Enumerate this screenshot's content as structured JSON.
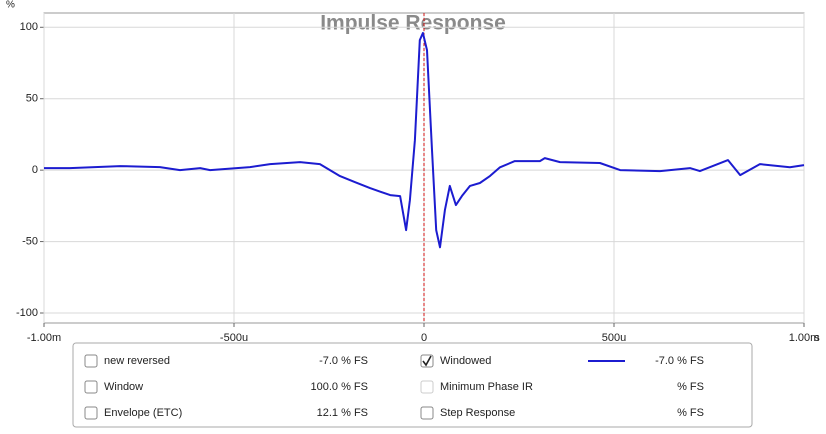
{
  "chart_data": {
    "type": "line",
    "title": "Impulse Response",
    "y_unit": "%",
    "x_unit": "s",
    "xlim": [
      -1,
      1
    ],
    "ylim": [
      -107,
      110
    ],
    "xticks": [
      {
        "value": -1,
        "label": "-1.00m"
      },
      {
        "value": -0.5,
        "label": "-500u"
      },
      0,
      {
        "value": 0.5,
        "label": "500u"
      },
      {
        "value": 1,
        "label": "1.00m"
      }
    ],
    "yticks": [
      100,
      50,
      0,
      -50,
      -100
    ],
    "grid": true,
    "marker_x": 0,
    "marker_color": "#d01010",
    "x": [
      -1.0,
      -0.932,
      -0.8,
      -0.695,
      -0.642,
      -0.589,
      -0.563,
      -0.458,
      -0.405,
      -0.326,
      -0.274,
      -0.221,
      -0.182,
      -0.142,
      -0.089,
      -0.063,
      -0.047,
      -0.037,
      -0.024,
      -0.011,
      -0.003,
      0.008,
      0.021,
      0.032,
      0.042,
      0.055,
      0.068,
      0.084,
      0.1,
      0.121,
      0.147,
      0.174,
      0.2,
      0.239,
      0.305,
      0.318,
      0.358,
      0.463,
      0.516,
      0.621,
      0.7,
      0.726,
      0.8,
      0.832,
      0.884,
      0.963,
      1.0
    ],
    "series": [
      {
        "color": "#1c1cd0",
        "values": [
          1.4,
          1.4,
          2.8,
          2.1,
          0,
          1.4,
          0,
          2.1,
          4.2,
          5.6,
          4.2,
          -4.2,
          -8.4,
          -12.6,
          -17.5,
          -18.2,
          -42,
          -21,
          21,
          91,
          96,
          84,
          14,
          -42,
          -54,
          -28,
          -11,
          -24.5,
          -18,
          -11,
          -9,
          -4,
          2,
          6.3,
          6.3,
          8.4,
          5.6,
          5,
          0,
          -0.7,
          1.4,
          -0.7,
          7,
          -3.5,
          4.2,
          2,
          3.5
        ]
      }
    ]
  },
  "legend_panel": {
    "items": [
      {
        "name": "new reversed",
        "value": "-7.0 % FS",
        "checked": false,
        "enabled": true
      },
      {
        "name": "Windowed",
        "value": "-7.0 % FS",
        "checked": true,
        "enabled": true,
        "line": true
      },
      {
        "name": "Window",
        "value": "100.0 % FS",
        "checked": false,
        "enabled": true
      },
      {
        "name": "Minimum Phase IR",
        "value": "% FS",
        "checked": false,
        "enabled": false
      },
      {
        "name": "Envelope (ETC)",
        "value": "12.1 % FS",
        "checked": false,
        "enabled": true
      },
      {
        "name": "Step Response",
        "value": "% FS",
        "checked": false,
        "enabled": true
      }
    ]
  }
}
